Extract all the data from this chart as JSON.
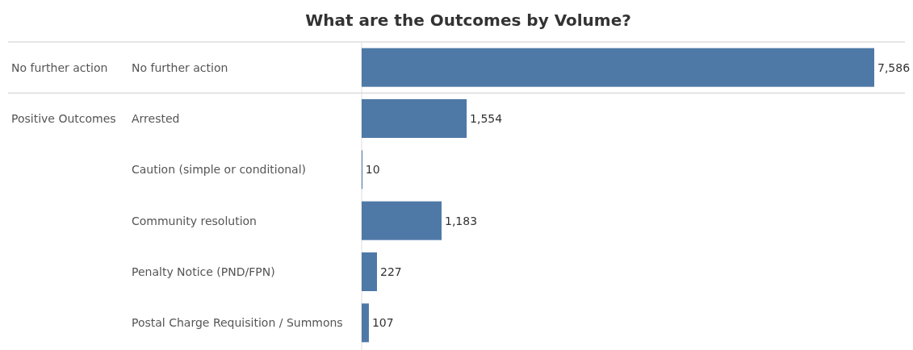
{
  "chart_data": {
    "type": "bar",
    "orientation": "horizontal",
    "title": "What are the Outcomes by Volume?",
    "categories": [
      "No further action",
      "Arrested",
      "Caution (simple or conditional)",
      "Community resolution",
      "Penalty Notice (PND/FPN)",
      "Postal Charge Requisition / Summons"
    ],
    "values": [
      7586,
      1554,
      10,
      1183,
      227,
      107
    ],
    "value_labels": [
      "7,586",
      "1,554",
      "10",
      "1,183",
      "227",
      "107"
    ],
    "color": "#4e79a7",
    "annotations": [
      "No further action",
      "Positive Outcomes"
    ]
  }
}
